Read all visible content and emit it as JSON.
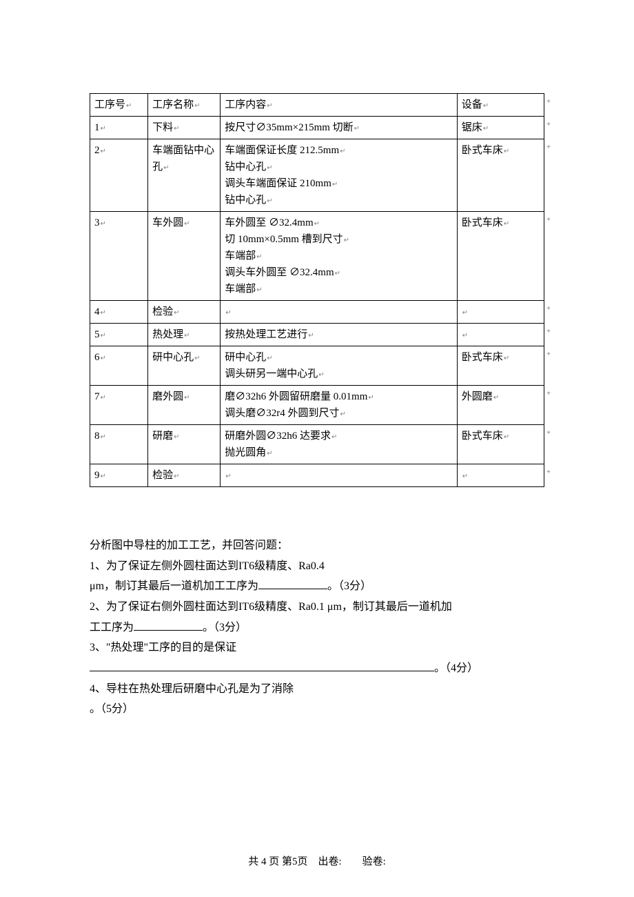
{
  "table": {
    "headers": {
      "col1": "工序号",
      "col2": "工序名称",
      "col3": "工序内容",
      "col4": "设备"
    },
    "rows": [
      {
        "num": "1",
        "name": "下料",
        "content": [
          "按尺寸∅35mm×215mm 切断"
        ],
        "equip": "锯床"
      },
      {
        "num": "2",
        "name": "车端面钻中心孔",
        "content": [
          "车端面保证长度 212.5mm",
          "钻中心孔",
          "调头车端面保证 210mm",
          "钻中心孔"
        ],
        "equip": "卧式车床"
      },
      {
        "num": "3",
        "name": "车外圆",
        "content": [
          "车外圆至 ∅32.4mm",
          "切 10mm×0.5mm 槽到尺寸",
          "车端部",
          "调头车外圆至 ∅32.4mm",
          "车端部"
        ],
        "equip": "卧式车床"
      },
      {
        "num": "4",
        "name": "检验",
        "content": [
          ""
        ],
        "equip": ""
      },
      {
        "num": "5",
        "name": "热处理",
        "content": [
          "按热处理工艺进行"
        ],
        "equip": ""
      },
      {
        "num": "6",
        "name": "研中心孔",
        "content": [
          "研中心孔",
          "调头研另一端中心孔"
        ],
        "equip": "卧式车床"
      },
      {
        "num": "7",
        "name": "磨外圆",
        "content": [
          "磨∅32h6 外圆留研磨量 0.01mm",
          "调头磨∅32r4 外圆到尺寸"
        ],
        "equip": "外圆磨"
      },
      {
        "num": "8",
        "name": "研磨",
        "content": [
          "研磨外圆∅32h6 达要求",
          "抛光圆角"
        ],
        "equip": "卧式车床"
      },
      {
        "num": "9",
        "name": "检验",
        "content": [
          ""
        ],
        "equip": ""
      }
    ]
  },
  "questions": {
    "intro": "分析图中导柱的加工工艺，并回答问题：",
    "q1_a": "1、为了保证左侧外圆柱面达到IT6级精度、Ra0.4",
    "q1_b": "μm，制订其最后一道机加工工序为",
    "q1_c": "。（3分）",
    "q2_a": "2、为了保证右侧外圆柱面达到IT6级精度、Ra0.1 μm，制订其最后一道机加",
    "q2_b": "工工序为",
    "q2_c": "。（3分）",
    "q3_a": "3、\"热处理\"工序的目的是保证",
    "q3_b": "。（4分）",
    "q4_a": "4、导柱在热处理后研磨中心孔是为了消除",
    "q4_b": "。（5分）"
  },
  "footer": {
    "page": "共 4 页 第5页",
    "maker": "出卷:",
    "checker": "验卷:"
  },
  "marks": {
    "return": "↵",
    "plus": "+"
  }
}
